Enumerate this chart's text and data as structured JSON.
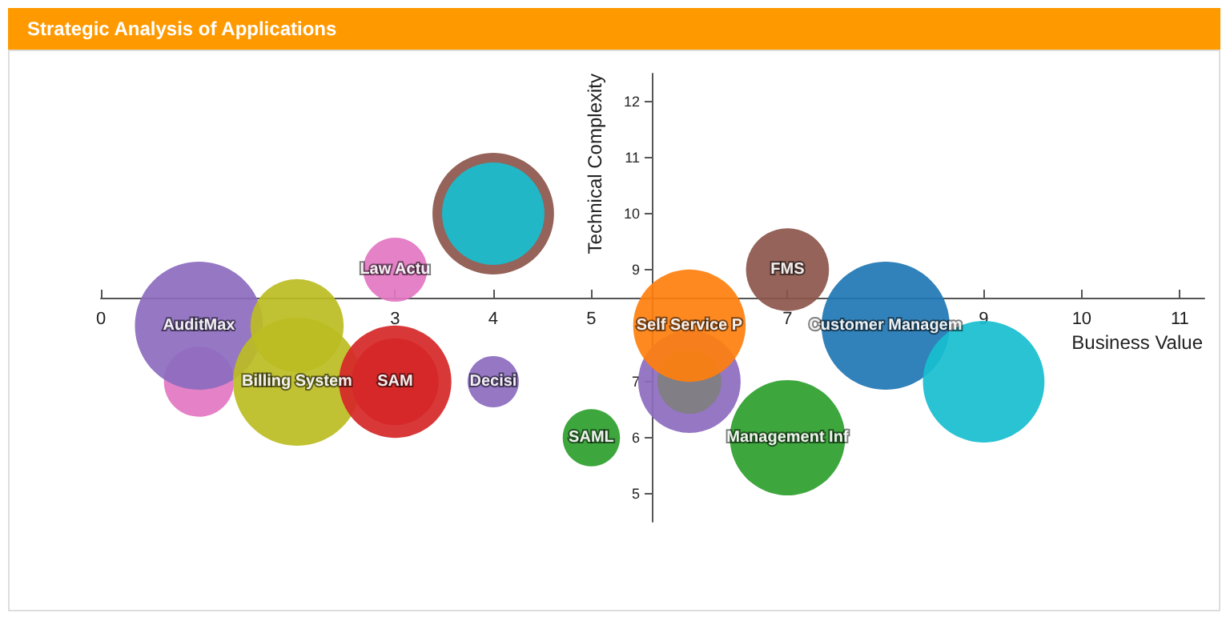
{
  "chart_data": {
    "type": "bubble",
    "title": "Strategic Analysis of Applications",
    "xlabel": "Business Value",
    "ylabel": "Technical Complexity",
    "xlim": [
      0,
      11.25
    ],
    "ylim": [
      4.5,
      12.5
    ],
    "xticks": [
      0,
      3,
      4,
      5,
      7,
      9,
      10,
      11
    ],
    "yticks": [
      5,
      6,
      7,
      9,
      10,
      11,
      12
    ],
    "legend": false,
    "grid": false,
    "series": [
      {
        "color": "#e377c2",
        "x": [
          1
        ],
        "values": [
          7
        ],
        "sizes": [
          0.3
        ]
      },
      {
        "name": "AuditMax",
        "color": "#8c6bbf",
        "x": [
          1
        ],
        "values": [
          8
        ],
        "sizes": [
          1
        ]
      },
      {
        "color": "#bcbd22",
        "x": [
          2
        ],
        "values": [
          8
        ],
        "sizes": [
          0.53
        ]
      },
      {
        "name": "Billing System",
        "color": "#bcbd22",
        "x": [
          2
        ],
        "values": [
          7
        ],
        "sizes": [
          1
        ]
      },
      {
        "color": "#d62728",
        "x": [
          3
        ],
        "values": [
          7
        ],
        "sizes": [
          0.77
        ]
      },
      {
        "name": "SAM",
        "color": "#d62728",
        "x": [
          3
        ],
        "values": [
          7
        ],
        "sizes": [
          0.46
        ]
      },
      {
        "name": "Law Actu",
        "color": "#e377c2",
        "x": [
          3
        ],
        "values": [
          9
        ],
        "sizes": [
          0.25
        ]
      },
      {
        "color": "#8c564b",
        "x": [
          4
        ],
        "values": [
          10
        ],
        "sizes": [
          0.9
        ]
      },
      {
        "color": "#17becf",
        "x": [
          4
        ],
        "values": [
          10
        ],
        "sizes": [
          0.64
        ]
      },
      {
        "name": "Decisi",
        "color": "#8c6bbf",
        "x": [
          4
        ],
        "values": [
          7
        ],
        "sizes": [
          0.16
        ]
      },
      {
        "name": "SAML",
        "color": "#2ca02c",
        "x": [
          5
        ],
        "values": [
          6
        ],
        "sizes": [
          0.2
        ]
      },
      {
        "color": "#8c6bbf",
        "x": [
          6
        ],
        "values": [
          7
        ],
        "sizes": [
          0.64
        ]
      },
      {
        "color": "#7f7f7f",
        "x": [
          6
        ],
        "values": [
          7
        ],
        "sizes": [
          0.25
        ]
      },
      {
        "name": "Self Service P",
        "color": "#ff7f0e",
        "x": [
          6
        ],
        "values": [
          8
        ],
        "sizes": [
          0.77
        ]
      },
      {
        "name": "FMS",
        "color": "#8c564b",
        "x": [
          7
        ],
        "values": [
          9
        ],
        "sizes": [
          0.42
        ]
      },
      {
        "name": "Management Inf",
        "color": "#2ca02c",
        "x": [
          7
        ],
        "values": [
          6
        ],
        "sizes": [
          0.81
        ]
      },
      {
        "name": "Customer Managem",
        "color": "#1f77b4",
        "x": [
          8
        ],
        "values": [
          8
        ],
        "sizes": [
          1
        ]
      },
      {
        "color": "#17becf",
        "x": [
          9
        ],
        "values": [
          7
        ],
        "sizes": [
          0.9
        ]
      }
    ]
  }
}
